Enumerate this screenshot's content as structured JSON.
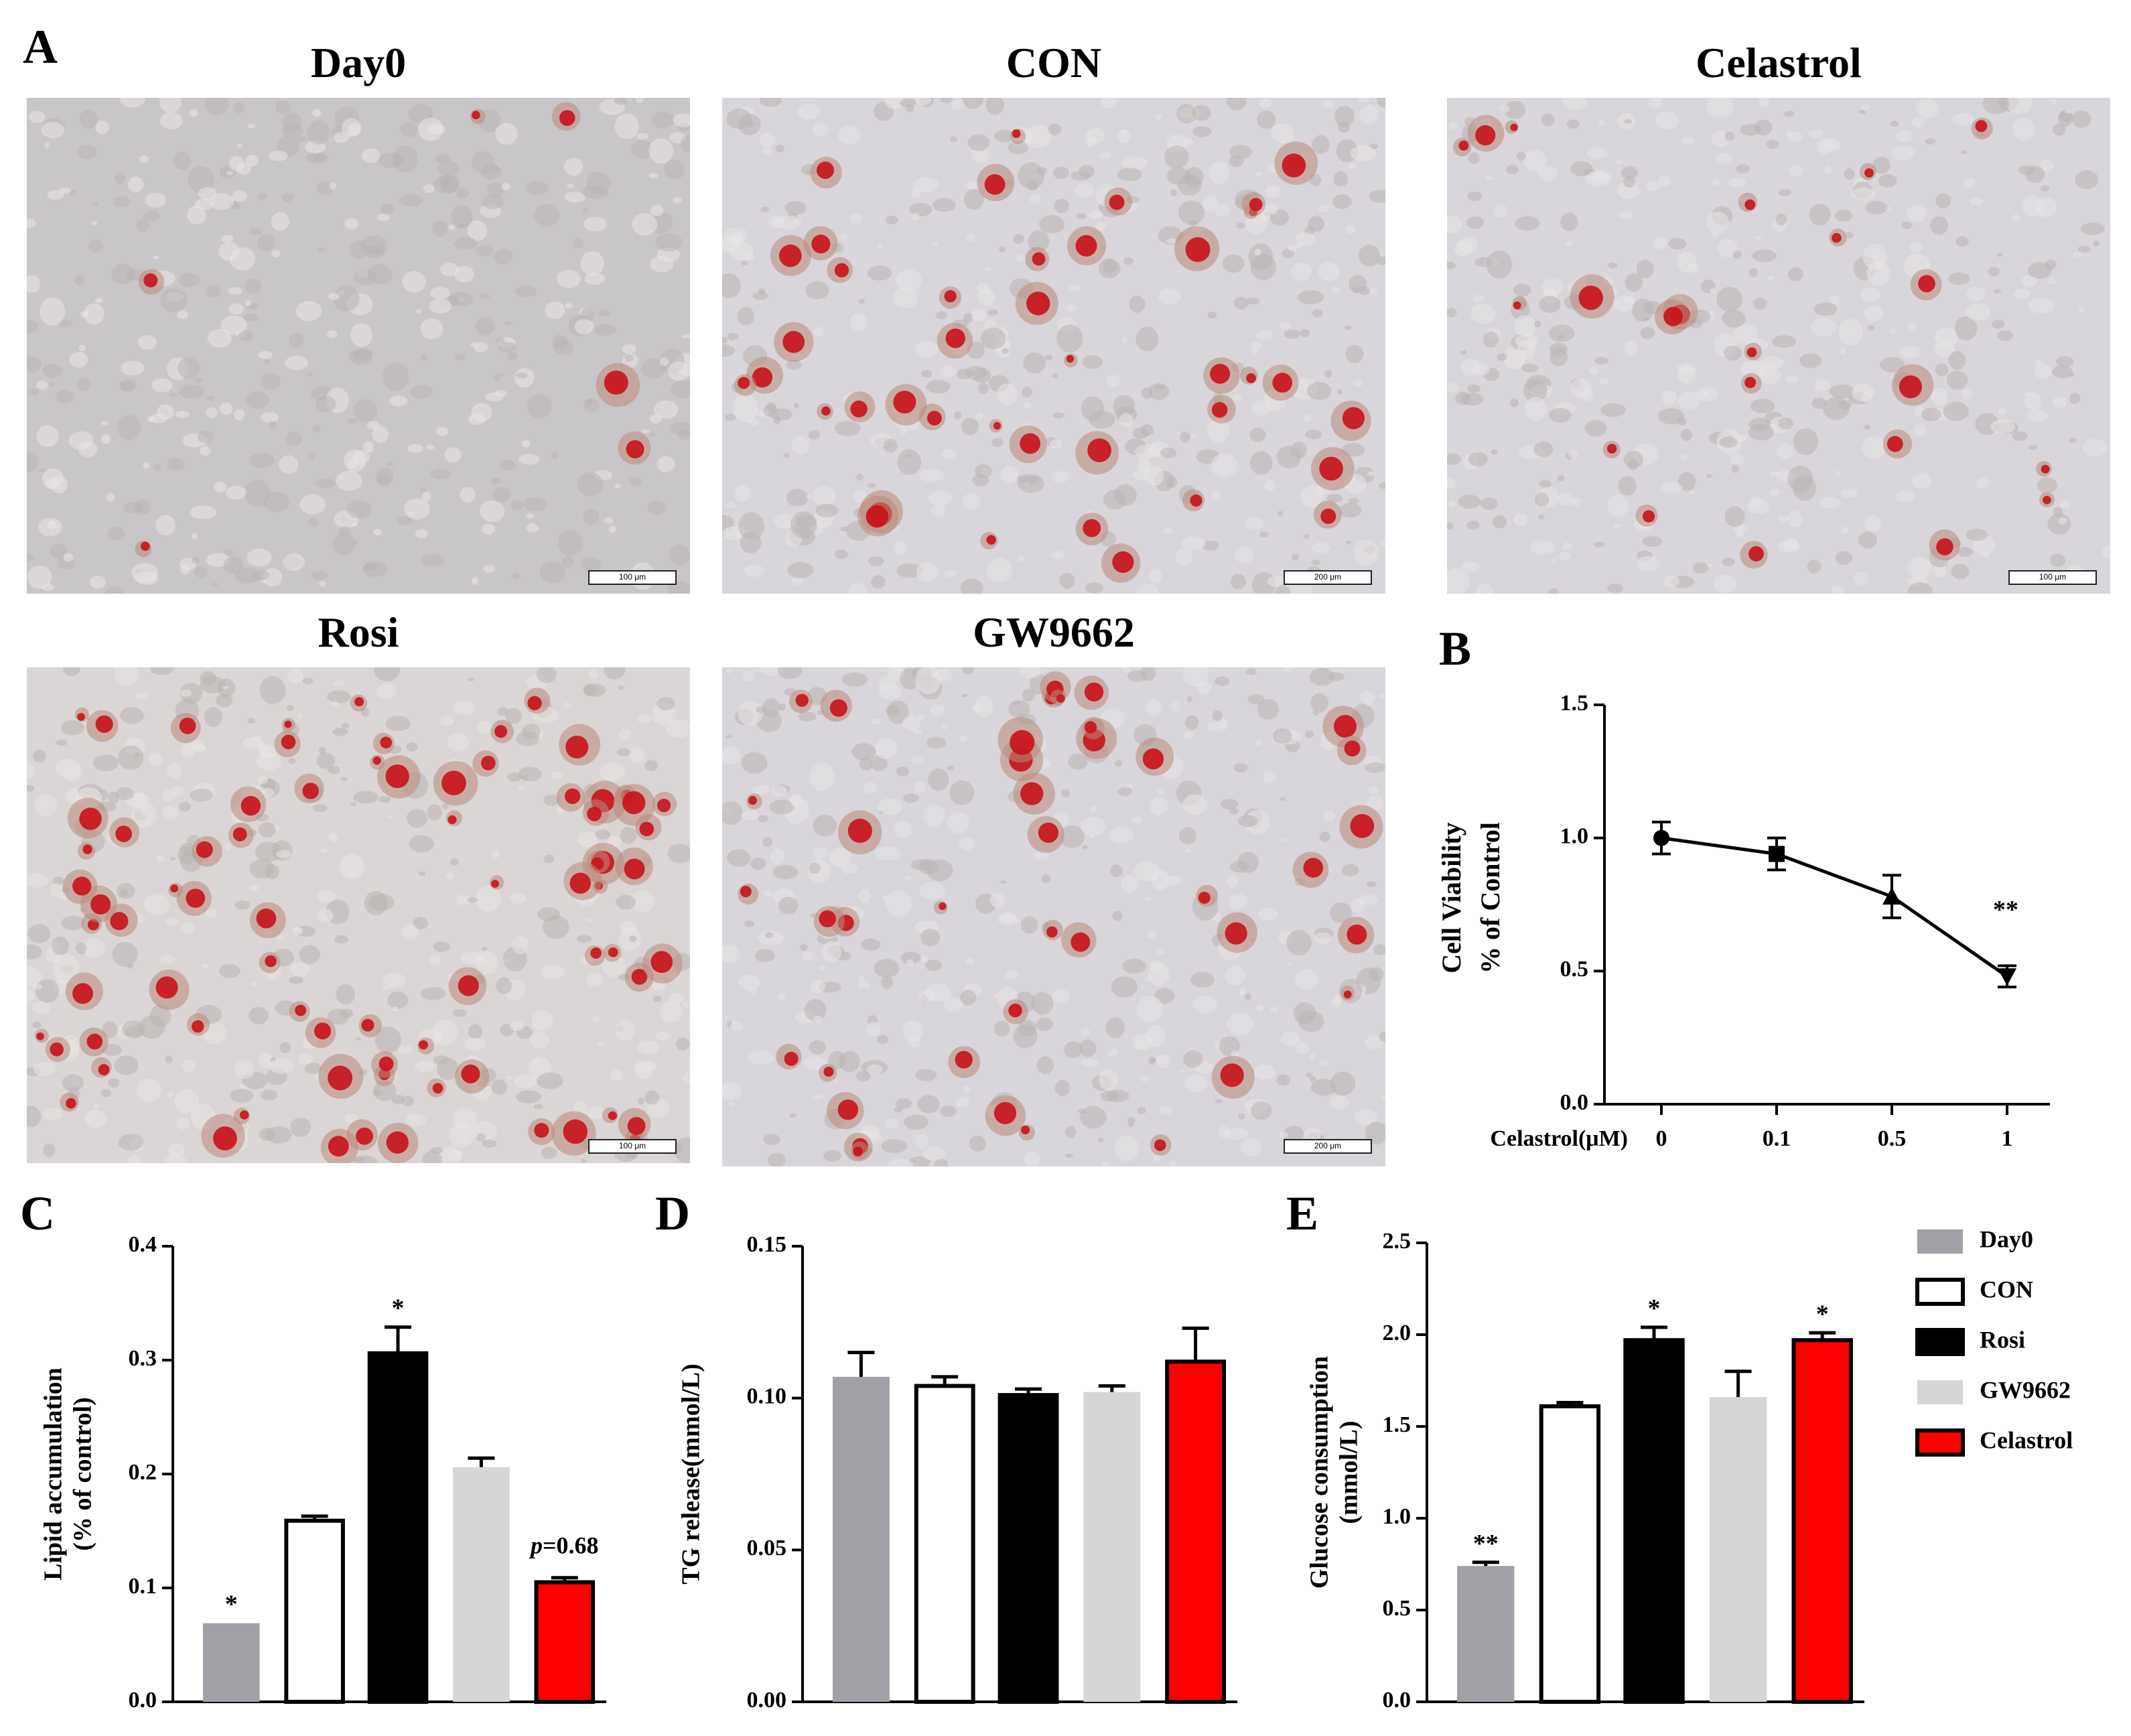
{
  "panel_letters": {
    "a": "A",
    "b": "B",
    "c": "C",
    "d": "D",
    "e": "E"
  },
  "images": [
    {
      "title": "Day0",
      "scale_label": "100 μm",
      "stain": "low"
    },
    {
      "title": "CON",
      "scale_label": "200 μm",
      "stain": "medium"
    },
    {
      "title": "Celastrol",
      "scale_label": "100 μm",
      "stain": "low-medium"
    },
    {
      "title": "Rosi",
      "scale_label": "100 μm",
      "stain": "high"
    },
    {
      "title": "GW9662",
      "scale_label": "200 μm",
      "stain": "medium"
    }
  ],
  "colors": {
    "Day0": "#a0a0a6",
    "CON": "#ffffff",
    "Rosi": "#000000",
    "GW9662": "#d6d6d6",
    "Celastrol": "#ff0000"
  },
  "chart_data": [
    {
      "id": "B",
      "type": "line",
      "x_axis_label": "Celastrol(μM)",
      "categories": [
        "0",
        "0.1",
        "0.5",
        "1"
      ],
      "ylabel_lines": [
        "Cell Viability",
        "% of Control"
      ],
      "ylim": [
        0.0,
        1.5
      ],
      "yticks": [
        "0.0",
        "0.5",
        "1.0",
        "1.5"
      ],
      "values": [
        1.0,
        0.94,
        0.78,
        0.48
      ],
      "errors": [
        0.06,
        0.06,
        0.08,
        0.04
      ],
      "markers": [
        "circle",
        "square",
        "triangle-up",
        "triangle-down"
      ],
      "annotations": [
        {
          "index": 3,
          "text": "**"
        }
      ]
    },
    {
      "id": "C",
      "type": "bar",
      "categories": [
        "Day0",
        "CON",
        "Rosi",
        "GW9662",
        "Celastrol"
      ],
      "ylabel_lines": [
        "Lipid accumulation",
        "(% of control)"
      ],
      "ylim": [
        0.0,
        0.4
      ],
      "yticks": [
        "0.0",
        "0.1",
        "0.2",
        "0.3",
        "0.4"
      ],
      "values": [
        0.069,
        0.159,
        0.306,
        0.206,
        0.105
      ],
      "errors": [
        0.0,
        0.004,
        0.023,
        0.008,
        0.004
      ],
      "annotations": [
        {
          "index": 0,
          "text": "*"
        },
        {
          "index": 2,
          "text": "*"
        },
        {
          "index": 4,
          "text_italic": "p",
          "text": "=0.68"
        }
      ]
    },
    {
      "id": "D",
      "type": "bar",
      "categories": [
        "Day0",
        "CON",
        "Rosi",
        "GW9662",
        "Celastrol"
      ],
      "ylabel_lines": [
        "TG release(mmol/L)"
      ],
      "ylim": [
        0.0,
        0.15
      ],
      "yticks": [
        "0.00",
        "0.05",
        "0.10",
        "0.15"
      ],
      "values": [
        0.107,
        0.104,
        0.101,
        0.102,
        0.112
      ],
      "errors": [
        0.008,
        0.003,
        0.002,
        0.002,
        0.011
      ],
      "annotations": []
    },
    {
      "id": "E",
      "type": "bar",
      "categories": [
        "Day0",
        "CON",
        "Rosi",
        "GW9662",
        "Celastrol"
      ],
      "ylabel_lines": [
        "Glucose consumption",
        "(mmol/L)"
      ],
      "ylim": [
        0.0,
        2.5
      ],
      "yticks": [
        "0.0",
        "0.5",
        "1.0",
        "1.5",
        "2.0",
        "2.5"
      ],
      "values": [
        0.74,
        1.61,
        1.97,
        1.66,
        1.97
      ],
      "errors": [
        0.02,
        0.02,
        0.07,
        0.14,
        0.04
      ],
      "annotations": [
        {
          "index": 0,
          "text": "**"
        },
        {
          "index": 2,
          "text": "*"
        },
        {
          "index": 4,
          "text": "*"
        }
      ],
      "legend": [
        "Day0",
        "CON",
        "Rosi",
        "GW9662",
        "Celastrol"
      ]
    }
  ]
}
